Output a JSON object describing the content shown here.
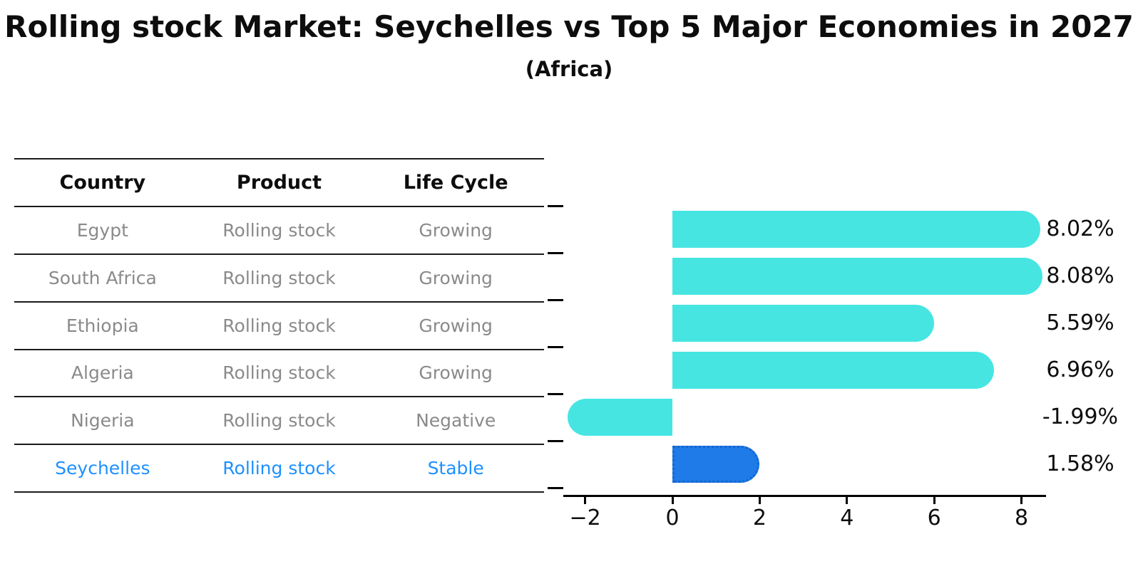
{
  "title": "Rolling stock Market: Seychelles vs Top 5 Major Economies in 2027",
  "subtitle": "(Africa)",
  "table": {
    "headers": [
      "Country",
      "Product",
      "Life Cycle"
    ],
    "rows": [
      {
        "country": "Egypt",
        "product": "Rolling stock",
        "life_cycle": "Growing"
      },
      {
        "country": "South Africa",
        "product": "Rolling stock",
        "life_cycle": "Growing"
      },
      {
        "country": "Ethiopia",
        "product": "Rolling stock",
        "life_cycle": "Growing"
      },
      {
        "country": "Algeria",
        "product": "Rolling stock",
        "life_cycle": "Growing"
      },
      {
        "country": "Nigeria",
        "product": "Rolling stock",
        "life_cycle": "Negative"
      },
      {
        "country": "Seychelles",
        "product": "Rolling stock",
        "life_cycle": "Stable"
      }
    ],
    "highlight_row": 5
  },
  "chart_data": {
    "type": "bar",
    "orientation": "horizontal",
    "title": "Rolling stock Market: Seychelles vs Top 5 Major Economies in 2027",
    "subtitle": "(Africa)",
    "categories": [
      "Egypt",
      "South Africa",
      "Ethiopia",
      "Algeria",
      "Nigeria",
      "Seychelles"
    ],
    "values": [
      8.02,
      8.08,
      5.59,
      6.96,
      -1.99,
      1.58
    ],
    "value_labels": [
      "8.02%",
      "8.08%",
      "5.59%",
      "6.96%",
      "-1.99%",
      "1.58%"
    ],
    "highlight_index": 5,
    "xtick_values": [
      -2,
      0,
      2,
      4,
      6,
      8
    ],
    "xtick_labels": [
      "−2",
      "0",
      "2",
      "4",
      "6",
      "8"
    ],
    "xlim": [
      -2.5,
      8.56
    ],
    "grid": false,
    "legend": "none",
    "bar_color": "#46E5E2",
    "highlight_color": "#1E7BE8",
    "highlight_border_color": "#1565D0",
    "highlight_text_color": "#1E90FF",
    "table_text_color": "#8a8a8a"
  }
}
